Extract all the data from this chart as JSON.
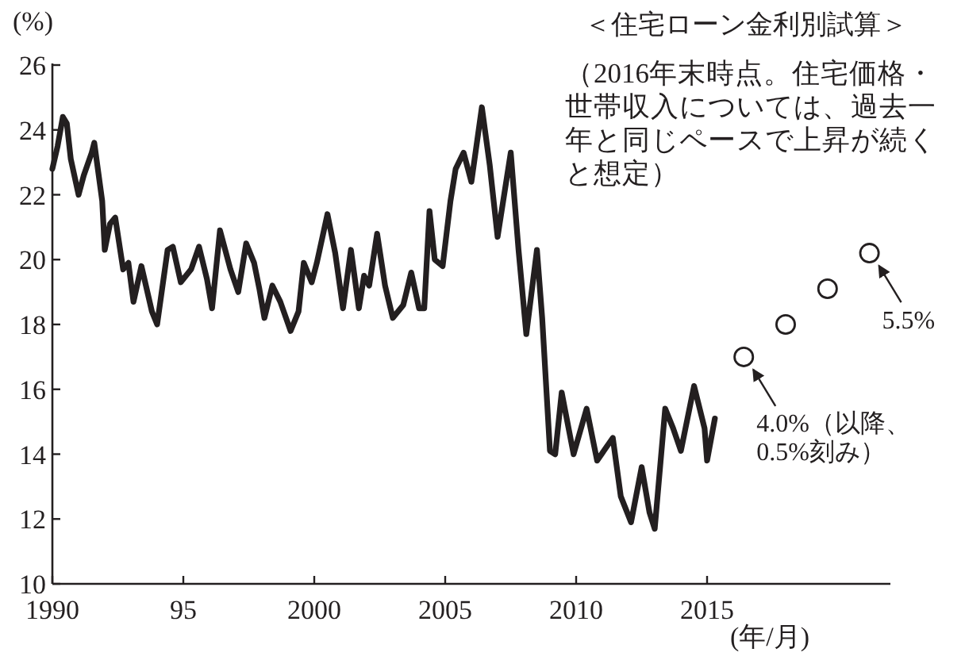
{
  "chart_data": {
    "type": "line",
    "title": "＜住宅ローン金利別試算＞",
    "subtitle": "（2016年末時点。住宅価格・世帯収入については、過去一年と同じペースで上昇が続くと想定）",
    "ylabel": "(%)",
    "xlabel": "(年/月)",
    "xlim": [
      1990,
      2022
    ],
    "ylim": [
      10,
      26
    ],
    "xticks": [
      1990,
      {
        "value": 1995,
        "label": "95"
      },
      2000,
      2005,
      2010,
      2015
    ],
    "yticks": [
      10,
      12,
      14,
      16,
      18,
      20,
      22,
      24,
      26
    ],
    "grid": false,
    "series": [
      {
        "color": "#231f20",
        "x": [
          1990.0,
          1990.2,
          1990.4,
          1990.55,
          1990.7,
          1991.0,
          1991.2,
          1991.5,
          1991.6,
          1991.9,
          1992.0,
          1992.2,
          1992.4,
          1992.7,
          1992.9,
          1993.1,
          1993.4,
          1993.8,
          1994.0,
          1994.4,
          1994.6,
          1994.9,
          1995.3,
          1995.6,
          1995.9,
          1996.1,
          1996.4,
          1996.8,
          1997.1,
          1997.4,
          1997.7,
          1997.9,
          1998.1,
          1998.4,
          1998.7,
          1999.1,
          1999.4,
          1999.6,
          1999.9,
          2000.1,
          2000.5,
          2000.8,
          2001.1,
          2001.4,
          2001.7,
          2001.9,
          2002.1,
          2002.4,
          2002.7,
          2003.0,
          2003.4,
          2003.7,
          2004.0,
          2004.2,
          2004.4,
          2004.6,
          2004.9,
          2005.2,
          2005.4,
          2005.7,
          2006.0,
          2006.4,
          2006.7,
          2007.0,
          2007.5,
          2007.8,
          2008.1,
          2008.5,
          2008.7,
          2009.0,
          2009.2,
          2009.45,
          2009.9,
          2010.4,
          2010.8,
          2011.4,
          2011.7,
          2012.1,
          2012.5,
          2012.8,
          2013.0,
          2013.4,
          2013.7,
          2014.0,
          2014.5,
          2014.9,
          2015.0,
          2015.3
        ],
        "values": [
          22.8,
          23.5,
          24.4,
          24.2,
          23.1,
          22.0,
          22.6,
          23.3,
          23.6,
          21.8,
          20.3,
          21.1,
          21.3,
          19.7,
          19.9,
          18.7,
          19.8,
          18.4,
          18.0,
          20.3,
          20.4,
          19.3,
          19.7,
          20.4,
          19.4,
          18.5,
          20.9,
          19.7,
          19.0,
          20.5,
          19.9,
          19.1,
          18.2,
          19.2,
          18.7,
          17.8,
          18.4,
          19.9,
          19.3,
          19.9,
          21.4,
          20.2,
          18.5,
          20.3,
          18.5,
          19.5,
          19.2,
          20.8,
          19.2,
          18.2,
          18.6,
          19.6,
          18.5,
          18.5,
          21.5,
          20.0,
          19.8,
          21.8,
          22.8,
          23.3,
          22.4,
          24.7,
          22.9,
          20.7,
          23.3,
          20.3,
          17.7,
          20.3,
          18.2,
          14.1,
          14.0,
          15.9,
          14.0,
          15.4,
          13.8,
          14.5,
          12.7,
          11.9,
          13.6,
          12.2,
          11.7,
          15.4,
          14.8,
          14.1,
          16.1,
          14.8,
          13.8,
          15.1
        ]
      },
      {
        "type": "scatter",
        "marker": "circle",
        "color": "#231f20",
        "x": [
          2016.4,
          2018.0,
          2019.6,
          2021.2
        ],
        "values": [
          17.0,
          18.0,
          19.1,
          20.2
        ]
      }
    ],
    "annotations": [
      {
        "text": "4.0%（以降、0.5%刻み）",
        "x": 2016.4,
        "y": 17.0
      },
      {
        "text": "5.5%",
        "x": 2021.2,
        "y": 20.2
      }
    ]
  }
}
